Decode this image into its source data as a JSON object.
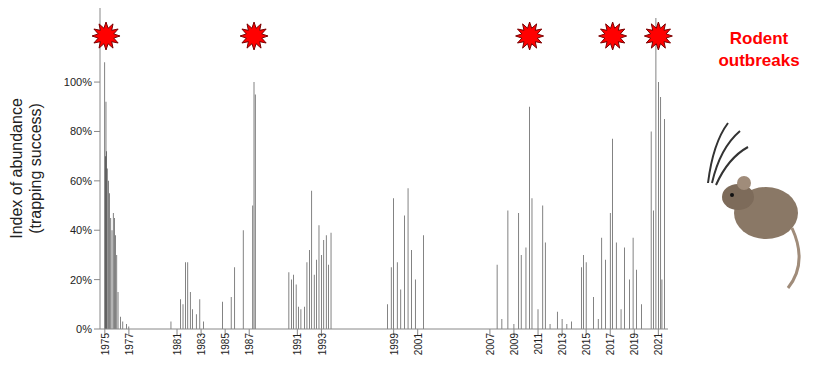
{
  "chart_data": {
    "type": "bar",
    "y_label": "Index of abundance (trapping success)",
    "annotation": "Rodent outbreaks",
    "outbreaks": [
      1975.1,
      1987.4,
      2010.3,
      2017.2,
      2021.0
    ],
    "x": [
      1975.0,
      1975.05,
      1975.1,
      1975.15,
      1975.2,
      1975.3,
      1975.4,
      1975.5,
      1975.6,
      1975.7,
      1975.8,
      1975.9,
      1976.0,
      1976.1,
      1976.3,
      1976.5,
      1976.8,
      1977.0,
      1980.5,
      1981.3,
      1981.5,
      1981.7,
      1981.9,
      1982.1,
      1982.3,
      1982.6,
      1982.9,
      1983.2,
      1984.8,
      1985.5,
      1985.8,
      1986.5,
      1987.3,
      1987.4,
      1987.5,
      1990.3,
      1990.5,
      1990.7,
      1990.9,
      1991.1,
      1991.3,
      1991.6,
      1991.8,
      1992.0,
      1992.2,
      1992.4,
      1992.6,
      1992.8,
      1993.0,
      1993.2,
      1993.4,
      1993.6,
      1993.8,
      1998.5,
      1998.8,
      1999.0,
      1999.3,
      1999.6,
      1999.9,
      2000.2,
      2000.5,
      2000.8,
      2001.5,
      2007.6,
      2008.0,
      2008.5,
      2009.0,
      2009.4,
      2009.6,
      2010.0,
      2010.3,
      2010.5,
      2011.0,
      2011.4,
      2011.6,
      2012.0,
      2012.6,
      2013.0,
      2013.4,
      2013.8,
      2014.6,
      2014.8,
      2015.0,
      2015.6,
      2016.0,
      2016.3,
      2016.6,
      2017.0,
      2017.2,
      2017.5,
      2017.9,
      2018.2,
      2018.6,
      2018.9,
      2019.2,
      2019.6,
      2020.4,
      2020.6,
      2020.8,
      2021.0,
      2021.2,
      2021.3,
      2021.5
    ],
    "values": [
      108,
      70,
      92,
      72,
      65,
      60,
      55,
      45,
      40,
      47,
      45,
      38,
      30,
      15,
      5,
      3,
      2,
      1,
      3,
      12,
      10,
      27,
      27,
      15,
      8,
      6,
      12,
      3,
      11,
      13,
      25,
      40,
      50,
      100,
      95,
      23,
      20,
      22,
      18,
      9,
      8,
      9,
      27,
      32,
      56,
      22,
      28,
      42,
      30,
      36,
      38,
      26,
      39,
      10,
      25,
      53,
      27,
      16,
      46,
      57,
      32,
      20,
      38,
      26,
      4,
      48,
      2,
      47,
      30,
      33,
      90,
      53,
      8,
      50,
      35,
      2,
      7,
      4,
      2,
      3,
      25,
      30,
      27,
      13,
      4,
      37,
      28,
      47,
      77,
      35,
      8,
      33,
      20,
      37,
      24,
      10,
      80,
      48,
      126,
      100,
      94,
      20,
      85
    ],
    "color": "#1a1a1a",
    "xlim": [
      1974.6,
      2021.8
    ],
    "xticks": [
      1975,
      1977,
      1981,
      1983,
      1985,
      1987,
      1991,
      1993,
      1999,
      2001,
      2007,
      2009,
      2011,
      2013,
      2015,
      2017,
      2019,
      2021
    ],
    "ylim": [
      0,
      130
    ],
    "yticks": [
      {
        "value": 0,
        "label": "0%"
      },
      {
        "value": 20,
        "label": "20%"
      },
      {
        "value": 40,
        "label": "40%"
      },
      {
        "value": 60,
        "label": "60%"
      },
      {
        "value": 80,
        "label": "80%"
      },
      {
        "value": 100,
        "label": "100%"
      }
    ],
    "grid": false
  }
}
